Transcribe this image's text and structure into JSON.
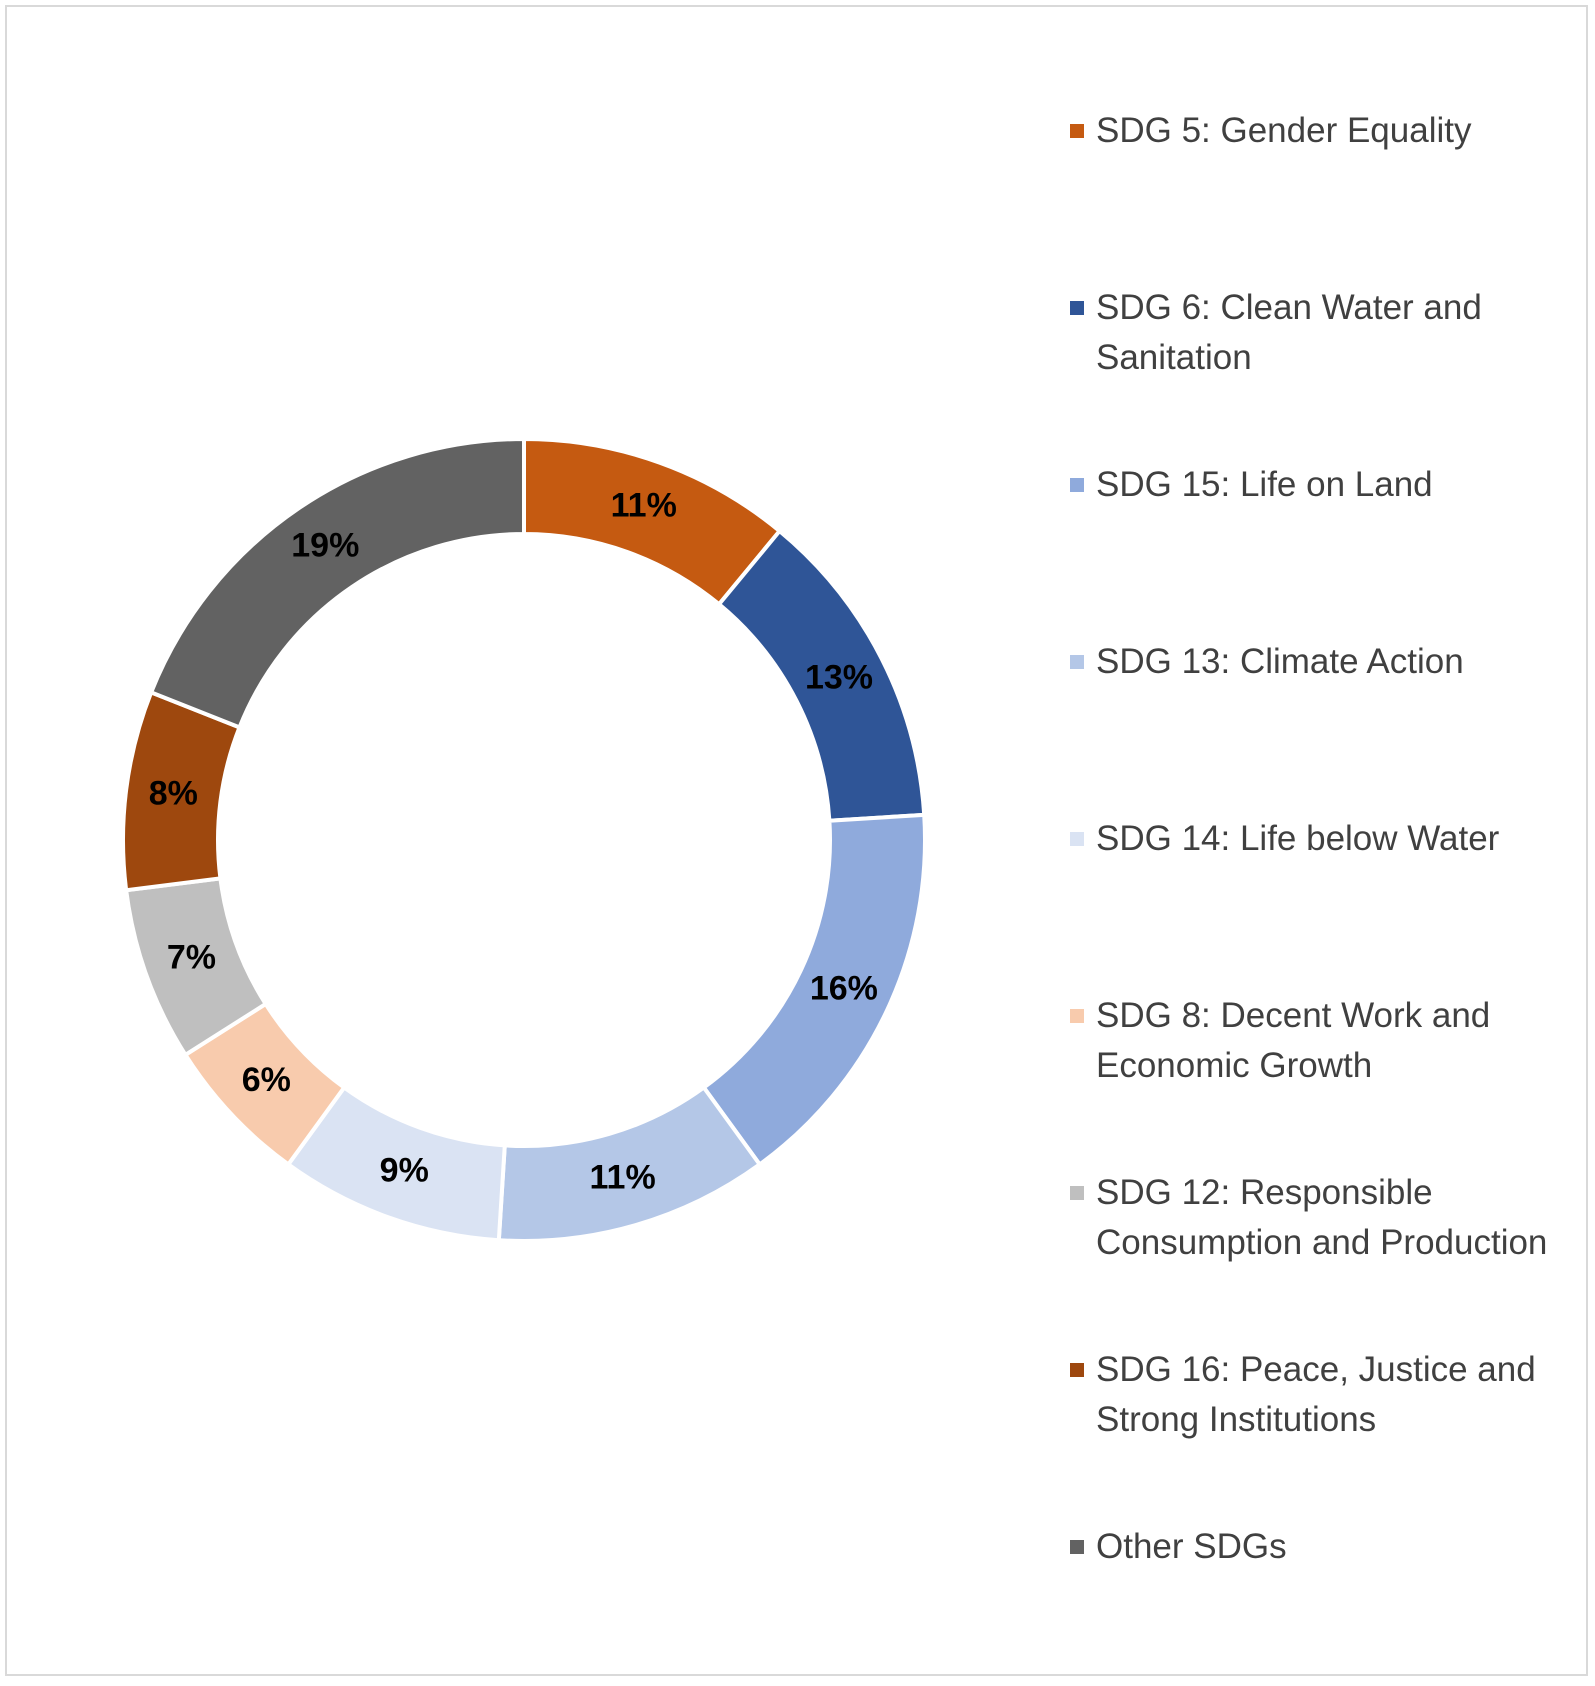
{
  "chart_data": {
    "type": "donut",
    "categories": [
      "SDG 5: Gender Equality",
      "SDG 6: Clean Water and Sanitation",
      "SDG 15: Life on Land",
      "SDG 13: Climate Action",
      "SDG 14: Life below Water",
      "SDG 8: Decent Work and Economic Growth",
      "SDG 12: Responsible Consumption and Production",
      "SDG 16: Peace, Justice and Strong Institutions",
      "Other SDGs"
    ],
    "values": [
      11,
      13,
      16,
      11,
      9,
      6,
      7,
      8,
      19
    ],
    "value_labels": [
      "11%",
      "13%",
      "16%",
      "11%",
      "9%",
      "6%",
      "7%",
      "8%",
      "19%"
    ],
    "colors": [
      "#c55a11",
      "#2f5597",
      "#8faadc",
      "#b4c7e7",
      "#dae3f3",
      "#f8cbad",
      "#bfbfbf",
      "#9e480e",
      "#626262"
    ],
    "legend": "right"
  }
}
